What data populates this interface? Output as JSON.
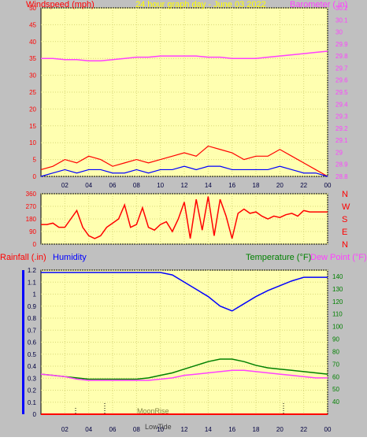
{
  "header": {
    "left_title": "Windspeed (mph)",
    "center_title": "24 hour graph day - June 03 2022",
    "right_title": "Barometer (.in)"
  },
  "colors": {
    "background": "#c0c0c0",
    "plot_bg": "#ffffb0",
    "grid": "#d8d878",
    "wind": "#ff0000",
    "gust_base": "#0000ff",
    "green": "#008000",
    "barometer": "#ff40ff",
    "title_yellow": "#ffff00",
    "rain": "#ff0000",
    "humidity": "#0000ff",
    "temperature": "#008000",
    "dewpoint": "#ff40ff"
  },
  "chart_data": [
    {
      "type": "line",
      "name_ref": "wind_baro",
      "x_ticks": [
        "02",
        "04",
        "06",
        "08",
        "10",
        "12",
        "14",
        "16",
        "18",
        "20",
        "22",
        "00"
      ],
      "left_axis": {
        "label": "Windspeed (mph)",
        "ylim": [
          0,
          50
        ],
        "ticks": [
          0,
          5,
          10,
          15,
          20,
          25,
          30,
          35,
          40,
          45,
          50
        ]
      },
      "right_axis": {
        "label": "Barometer (.in)",
        "ylim": [
          28.8,
          30.2
        ],
        "ticks": [
          "28.8",
          "28.9",
          "29",
          "29.1",
          "29.2",
          "29.3",
          "29.4",
          "29.5",
          "29.6",
          "29.7",
          "29.8",
          "29.9",
          "30",
          "30.1",
          "30.2"
        ]
      },
      "series": [
        {
          "name": "Barometer",
          "axis": "right",
          "x": [
            0,
            1,
            2,
            3,
            4,
            5,
            6,
            7,
            8,
            9,
            10,
            11,
            12,
            13,
            14,
            15,
            16,
            17,
            18,
            19,
            20,
            21,
            22,
            23,
            24
          ],
          "y": [
            29.78,
            29.78,
            29.77,
            29.77,
            29.76,
            29.76,
            29.77,
            29.78,
            29.79,
            29.79,
            29.8,
            29.8,
            29.8,
            29.8,
            29.79,
            29.79,
            29.78,
            29.78,
            29.78,
            29.79,
            29.8,
            29.81,
            29.82,
            29.83,
            29.84
          ]
        },
        {
          "name": "Wind gust",
          "axis": "left",
          "x": [
            0,
            1,
            2,
            3,
            4,
            5,
            6,
            7,
            8,
            9,
            10,
            11,
            12,
            13,
            14,
            15,
            16,
            17,
            18,
            19,
            20,
            21,
            22,
            23,
            24
          ],
          "y": [
            2,
            3,
            5,
            4,
            6,
            5,
            3,
            4,
            5,
            4,
            5,
            6,
            7,
            6,
            9,
            8,
            7,
            5,
            6,
            6,
            8,
            6,
            4,
            2,
            0
          ]
        },
        {
          "name": "Wind speed",
          "axis": "left",
          "x": [
            0,
            1,
            2,
            3,
            4,
            5,
            6,
            7,
            8,
            9,
            10,
            11,
            12,
            13,
            14,
            15,
            16,
            17,
            18,
            19,
            20,
            21,
            22,
            23,
            24
          ],
          "y": [
            0,
            1,
            2,
            1,
            2,
            2,
            1,
            1,
            2,
            1,
            2,
            2,
            3,
            2,
            3,
            3,
            2,
            2,
            2,
            2,
            3,
            2,
            1,
            1,
            0
          ]
        }
      ]
    },
    {
      "type": "line",
      "name_ref": "wind_direction",
      "left_axis": {
        "ylim": [
          0,
          360
        ],
        "ticks": [
          0,
          90,
          180,
          270,
          360
        ]
      },
      "right_labels": [
        "N",
        "W",
        "S",
        "E",
        "N"
      ],
      "series": [
        {
          "name": "Direction",
          "x": [
            0,
            0.5,
            1,
            1.5,
            2,
            2.5,
            3,
            3.5,
            4,
            4.5,
            5,
            5.5,
            6,
            6.5,
            7,
            7.5,
            8,
            8.5,
            9,
            9.5,
            10,
            10.5,
            11,
            11.5,
            12,
            12.5,
            13,
            13.5,
            14,
            14.5,
            15,
            15.5,
            16,
            16.5,
            17,
            17.5,
            18,
            18.5,
            19,
            19.5,
            20,
            20.5,
            21,
            21.5,
            22,
            22.5,
            23,
            23.5,
            24
          ],
          "y": [
            140,
            140,
            150,
            120,
            120,
            180,
            240,
            120,
            60,
            40,
            60,
            120,
            150,
            180,
            280,
            120,
            140,
            260,
            120,
            100,
            140,
            160,
            90,
            180,
            300,
            40,
            320,
            100,
            340,
            60,
            320,
            200,
            40,
            220,
            250,
            220,
            230,
            200,
            180,
            200,
            190,
            210,
            220,
            200,
            240,
            230,
            230,
            230,
            230
          ]
        }
      ]
    },
    {
      "type": "line",
      "name_ref": "rain_humidity_temp",
      "x_ticks": [
        "02",
        "04",
        "06",
        "08",
        "10",
        "12",
        "14",
        "16",
        "18",
        "20",
        "22",
        "00"
      ],
      "left_axis": {
        "label": "Rainfall (.in)",
        "ylim": [
          0,
          1.2
        ],
        "ticks": [
          "0",
          "0.1",
          "0.2",
          "0.3",
          "0.4",
          "0.5",
          "0.6",
          "0.7",
          "0.8",
          "0.9",
          "1",
          "1.1",
          "1.2"
        ]
      },
      "right_axis": {
        "labels": [
          "Temperature (°F)",
          "Dew Point (°F)"
        ],
        "ylim": [
          30,
          145
        ],
        "ticks": [
          40,
          50,
          60,
          70,
          80,
          90,
          100,
          110,
          120,
          130,
          140
        ]
      },
      "secondary_label": "Humidity",
      "annotations": [
        "MoonRise",
        "LowTide"
      ],
      "series": [
        {
          "name": "Humidity",
          "axis": "left_scaled",
          "x": [
            0,
            1,
            2,
            3,
            4,
            5,
            6,
            7,
            8,
            9,
            10,
            11,
            12,
            13,
            14,
            15,
            16,
            17,
            18,
            19,
            20,
            21,
            22,
            23,
            24
          ],
          "y": [
            1.18,
            1.18,
            1.18,
            1.18,
            1.18,
            1.18,
            1.18,
            1.18,
            1.18,
            1.18,
            1.18,
            1.16,
            1.1,
            1.04,
            0.98,
            0.9,
            0.86,
            0.92,
            0.98,
            1.03,
            1.07,
            1.11,
            1.14,
            1.14,
            1.14
          ]
        },
        {
          "name": "Temperature",
          "axis": "right",
          "x": [
            0,
            1,
            2,
            3,
            4,
            5,
            6,
            7,
            8,
            9,
            10,
            11,
            12,
            13,
            14,
            15,
            16,
            17,
            18,
            19,
            20,
            21,
            22,
            23,
            24
          ],
          "y": [
            62,
            61,
            60,
            59,
            58,
            58,
            58,
            58,
            58,
            59,
            61,
            63,
            66,
            69,
            72,
            74,
            74,
            72,
            69,
            67,
            66,
            65,
            64,
            63,
            62
          ]
        },
        {
          "name": "Dew Point",
          "axis": "right",
          "x": [
            0,
            1,
            2,
            3,
            4,
            5,
            6,
            7,
            8,
            9,
            10,
            11,
            12,
            13,
            14,
            15,
            16,
            17,
            18,
            19,
            20,
            21,
            22,
            23,
            24
          ],
          "y": [
            62,
            61,
            60,
            58,
            57,
            57,
            57,
            57,
            57,
            57,
            58,
            59,
            61,
            62,
            63,
            64,
            65,
            65,
            64,
            63,
            62,
            61,
            60,
            59,
            59
          ]
        },
        {
          "name": "Rainfall",
          "axis": "left",
          "x": [
            0,
            24
          ],
          "y": [
            0,
            0
          ]
        }
      ]
    }
  ]
}
